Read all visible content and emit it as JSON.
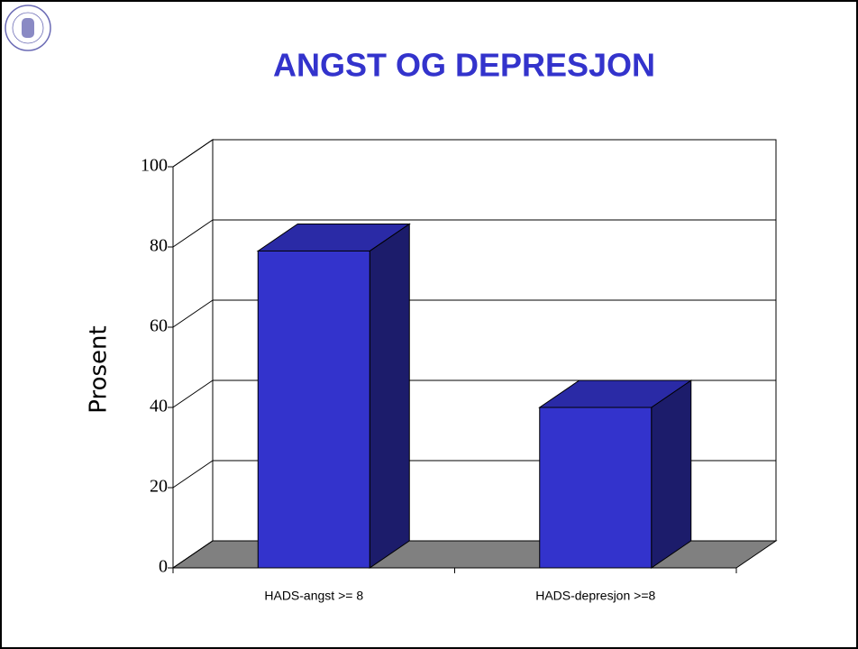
{
  "chart_data": {
    "type": "bar3d",
    "title": "ANGST OG DEPRESJON",
    "y_label": "Prosent",
    "categories": [
      "HADS-angst >= 8",
      "HADS-depresjon >=8"
    ],
    "values": [
      79,
      40
    ],
    "color": "#3333cc",
    "ylim": [
      0,
      100
    ],
    "yticks": [
      0,
      20,
      40,
      60,
      80,
      100
    ],
    "grid": true
  }
}
